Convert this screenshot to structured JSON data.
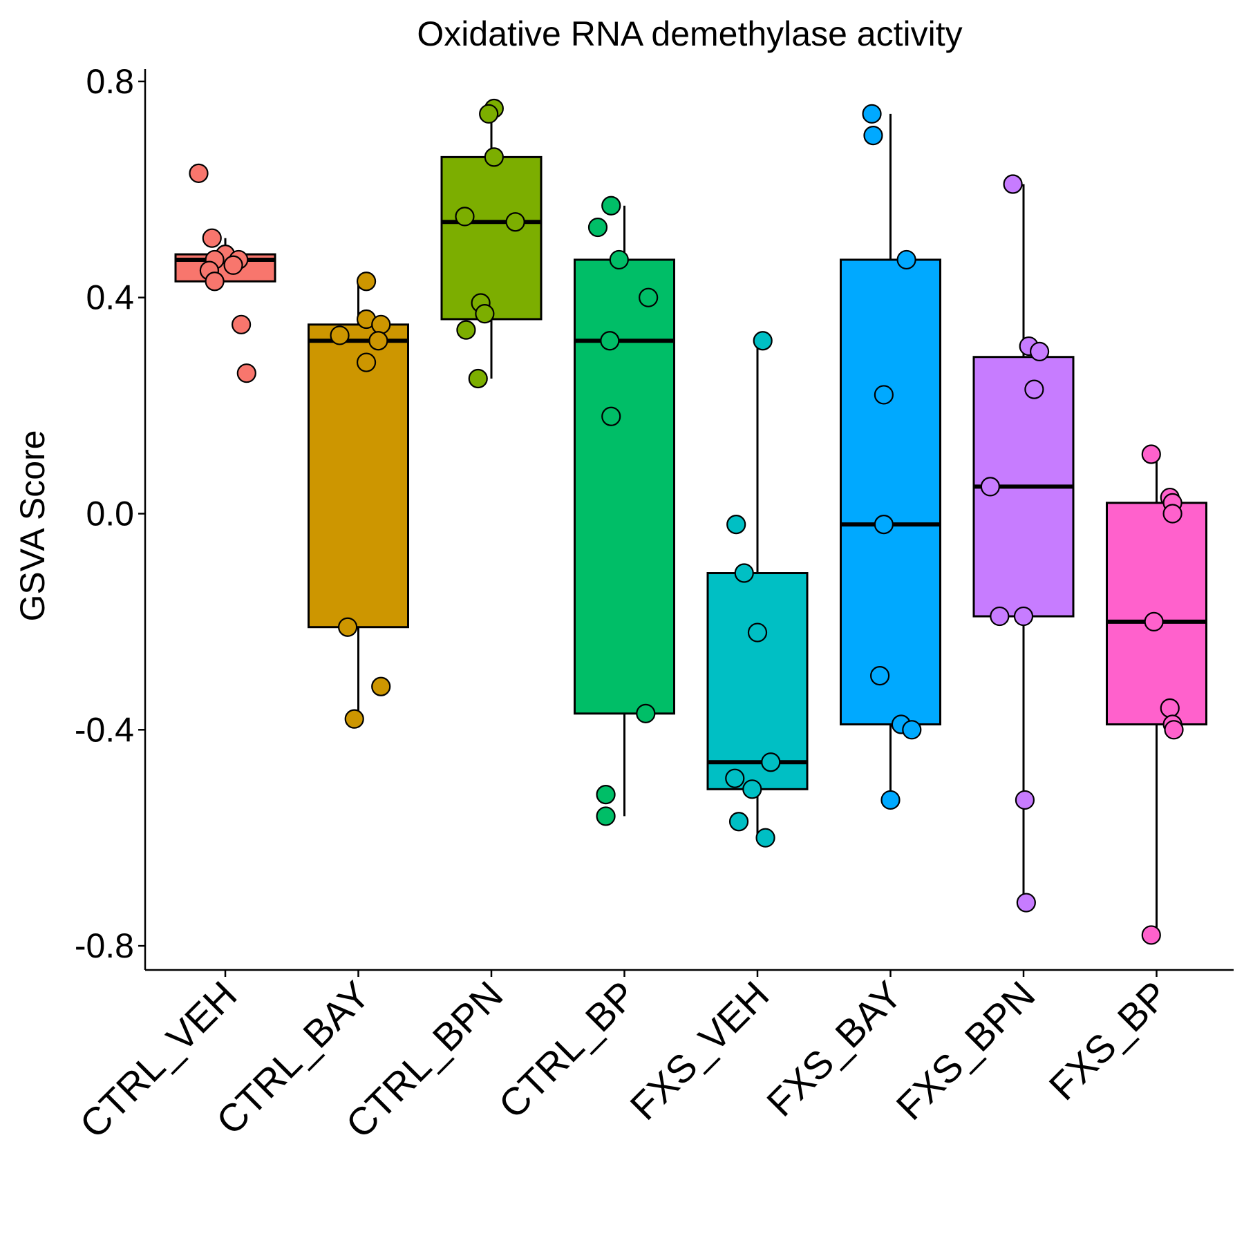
{
  "chart_data": {
    "type": "box",
    "title": "Oxidative RNA demethylase activity",
    "xlabel": "",
    "ylabel": "GSVA Score",
    "ylim": [
      -0.85,
      0.83
    ],
    "yticks": [
      -0.8,
      -0.4,
      0.0,
      0.4,
      0.8
    ],
    "ytick_labels": [
      "-0.8",
      "-0.4",
      "0.0",
      "0.4",
      "0.8"
    ],
    "grid": false,
    "legend": "none",
    "categories": [
      "CTRL_VEH",
      "CTRL_BAY",
      "CTRL_BPN",
      "CTRL_BP",
      "FXS_VEH",
      "FXS_BAY",
      "FXS_BPN",
      "FXS_BP"
    ],
    "colors": [
      "#F8766D",
      "#CD9600",
      "#7CAE00",
      "#00BE67",
      "#00BFC4",
      "#00A9FF",
      "#C77CFF",
      "#FF61CC"
    ],
    "boxes": [
      {
        "category": "CTRL_VEH",
        "whisker_low": 0.43,
        "q1": 0.43,
        "median": 0.47,
        "q3": 0.48,
        "whisker_high": 0.51
      },
      {
        "category": "CTRL_BAY",
        "whisker_low": -0.38,
        "q1": -0.21,
        "median": 0.32,
        "q3": 0.35,
        "whisker_high": 0.43
      },
      {
        "category": "CTRL_BPN",
        "whisker_low": 0.25,
        "q1": 0.36,
        "median": 0.54,
        "q3": 0.66,
        "whisker_high": 0.75
      },
      {
        "category": "CTRL_BP",
        "whisker_low": -0.56,
        "q1": -0.37,
        "median": 0.32,
        "q3": 0.47,
        "whisker_high": 0.57
      },
      {
        "category": "FXS_VEH",
        "whisker_low": -0.6,
        "q1": -0.51,
        "median": -0.46,
        "q3": -0.11,
        "whisker_high": 0.32
      },
      {
        "category": "FXS_BAY",
        "whisker_low": -0.53,
        "q1": -0.39,
        "median": -0.02,
        "q3": 0.47,
        "whisker_high": 0.74
      },
      {
        "category": "FXS_BPN",
        "whisker_low": -0.72,
        "q1": -0.19,
        "median": 0.05,
        "q3": 0.29,
        "whisker_high": 0.61
      },
      {
        "category": "FXS_BP",
        "whisker_low": -0.78,
        "q1": -0.39,
        "median": -0.2,
        "q3": 0.02,
        "whisker_high": 0.11
      }
    ],
    "points": [
      {
        "category": "CTRL_VEH",
        "values": [
          0.63,
          0.51,
          0.48,
          0.47,
          0.47,
          0.46,
          0.45,
          0.43,
          0.35,
          0.26
        ],
        "offsets": [
          -0.2,
          -0.1,
          0.0,
          -0.08,
          0.1,
          0.06,
          -0.12,
          -0.08,
          0.12,
          0.16
        ]
      },
      {
        "category": "CTRL_BAY",
        "values": [
          0.43,
          0.36,
          0.35,
          0.33,
          0.32,
          0.28,
          -0.21,
          -0.32,
          -0.38
        ],
        "offsets": [
          0.06,
          0.06,
          0.17,
          -0.14,
          0.15,
          0.06,
          -0.08,
          0.17,
          -0.03
        ]
      },
      {
        "category": "CTRL_BPN",
        "values": [
          0.75,
          0.74,
          0.66,
          0.55,
          0.54,
          0.39,
          0.37,
          0.34,
          0.25
        ],
        "offsets": [
          0.02,
          -0.02,
          0.02,
          -0.2,
          0.18,
          -0.08,
          -0.05,
          -0.19,
          -0.1
        ]
      },
      {
        "category": "CTRL_BP",
        "values": [
          0.57,
          0.53,
          0.47,
          0.4,
          0.32,
          0.18,
          -0.37,
          -0.52,
          -0.56
        ],
        "offsets": [
          -0.1,
          -0.2,
          -0.04,
          0.18,
          -0.11,
          -0.1,
          0.16,
          -0.14,
          -0.14
        ]
      },
      {
        "category": "FXS_VEH",
        "values": [
          0.32,
          -0.02,
          -0.11,
          -0.22,
          -0.46,
          -0.49,
          -0.51,
          -0.57,
          -0.6
        ],
        "offsets": [
          0.04,
          -0.16,
          -0.1,
          0.0,
          0.1,
          -0.17,
          -0.04,
          -0.14,
          0.06
        ]
      },
      {
        "category": "FXS_BAY",
        "values": [
          0.74,
          0.7,
          0.47,
          0.22,
          -0.02,
          -0.3,
          -0.39,
          -0.4,
          -0.53
        ],
        "offsets": [
          -0.14,
          -0.13,
          0.12,
          -0.05,
          -0.05,
          -0.08,
          0.08,
          0.16,
          0.0
        ]
      },
      {
        "category": "FXS_BPN",
        "values": [
          0.61,
          0.31,
          0.3,
          0.23,
          0.05,
          -0.19,
          -0.19,
          -0.53,
          -0.72
        ],
        "offsets": [
          -0.08,
          0.04,
          0.12,
          0.08,
          -0.25,
          -0.18,
          0.0,
          0.01,
          0.02
        ]
      },
      {
        "category": "FXS_BP",
        "values": [
          0.11,
          0.03,
          0.02,
          0.0,
          -0.2,
          -0.36,
          -0.39,
          -0.4,
          -0.78
        ],
        "offsets": [
          -0.04,
          0.1,
          0.12,
          0.12,
          -0.02,
          0.1,
          0.12,
          0.13,
          -0.04
        ]
      }
    ]
  }
}
